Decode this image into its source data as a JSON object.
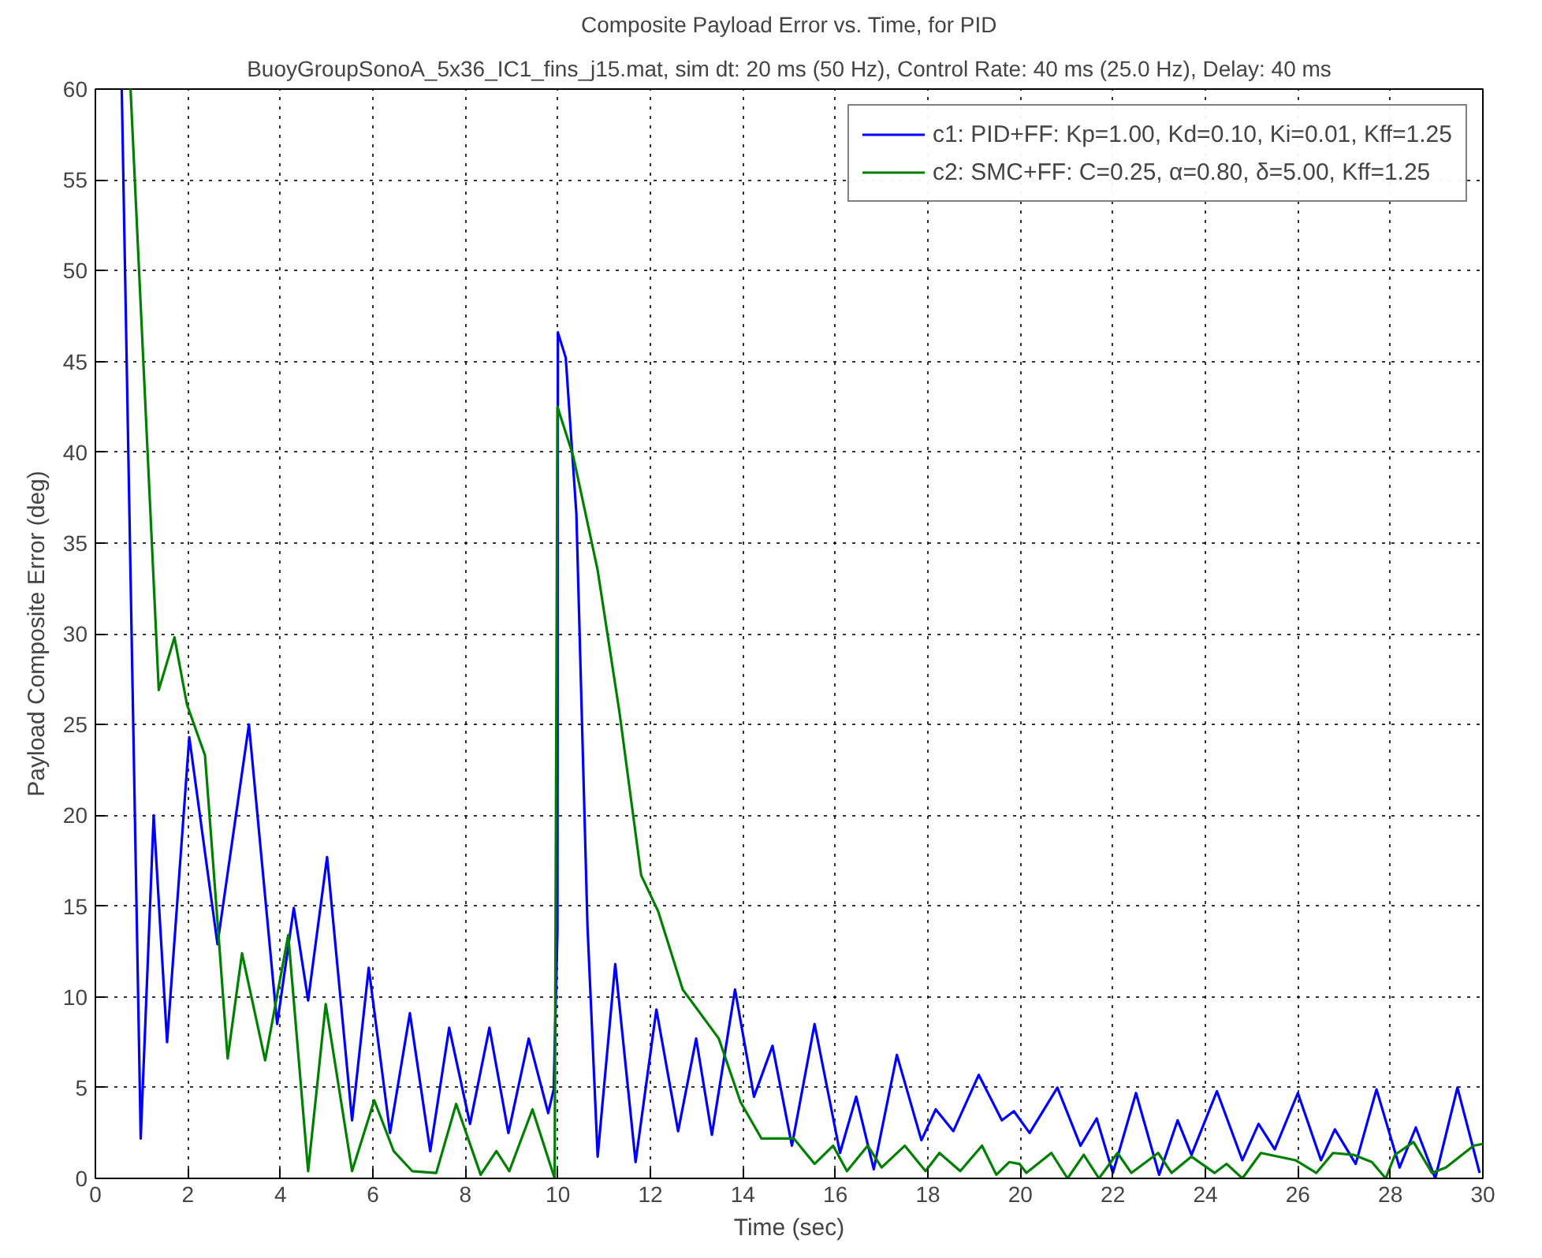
{
  "chart_data": {
    "type": "line",
    "title": "Composite Payload Error vs. Time, for PID",
    "subtitle": "BuoyGroupSonoA_5x36_IC1_fins_j15.mat, sim dt: 20 ms (50 Hz), Control Rate: 40 ms (25.0 Hz), Delay: 40 ms",
    "xlabel": "Time (sec)",
    "ylabel": "Payload Composite Error (deg)",
    "xlim": [
      0,
      30
    ],
    "ylim": [
      0,
      60
    ],
    "xticks": [
      0,
      2,
      4,
      6,
      8,
      10,
      12,
      14,
      16,
      18,
      20,
      22,
      24,
      26,
      28,
      30
    ],
    "yticks": [
      0,
      5,
      10,
      15,
      20,
      25,
      30,
      35,
      40,
      45,
      50,
      55,
      60
    ],
    "grid": true,
    "legend": "top right",
    "line_style": "solid",
    "series": [
      {
        "name": "c1: PID+FF: Kp=1.00, Kd=0.10, Ki=0.01, Kff=1.25",
        "color": "#0000ff",
        "x": [
          0.57,
          0.98,
          1.26,
          1.55,
          2.03,
          2.64,
          3.32,
          3.93,
          4.29,
          4.6,
          5.01,
          5.55,
          5.91,
          6.37,
          6.8,
          7.24,
          7.65,
          8.1,
          8.52,
          8.93,
          9.37,
          9.79,
          9.91,
          9.99,
          10.0,
          10.17,
          10.4,
          10.64,
          10.86,
          11.24,
          11.68,
          12.13,
          12.6,
          12.99,
          13.33,
          13.83,
          14.24,
          14.64,
          15.06,
          15.55,
          16.1,
          16.45,
          16.83,
          17.33,
          17.86,
          18.17,
          18.55,
          19.1,
          19.6,
          19.86,
          20.2,
          20.8,
          21.3,
          21.65,
          22.0,
          22.5,
          23.0,
          23.4,
          23.7,
          24.25,
          24.8,
          25.15,
          25.5,
          26.0,
          26.5,
          26.8,
          27.25,
          27.7,
          28.2,
          28.55,
          28.97,
          29.45,
          29.93
        ],
        "values": [
          60,
          2.2,
          20.0,
          7.5,
          24.3,
          12.9,
          25.0,
          8.5,
          14.9,
          9.8,
          17.7,
          3.2,
          11.6,
          2.5,
          9.1,
          1.5,
          8.3,
          3.0,
          8.3,
          2.5,
          7.7,
          3.6,
          4.9,
          13.6,
          46.6,
          45.2,
          36.6,
          13.9,
          1.2,
          11.8,
          0.9,
          9.3,
          2.6,
          7.7,
          2.4,
          10.4,
          4.5,
          7.3,
          1.8,
          8.5,
          1.4,
          4.5,
          0.5,
          6.8,
          2.1,
          3.8,
          2.6,
          5.7,
          3.2,
          3.7,
          2.5,
          5.0,
          1.8,
          3.3,
          0.3,
          4.7,
          0.2,
          3.2,
          1.3,
          4.8,
          1.0,
          3.0,
          1.6,
          4.7,
          1.0,
          2.7,
          0.8,
          4.9,
          0.6,
          2.8,
          0.0,
          5.0,
          0.3
        ]
      },
      {
        "name": "c2: SMC+FF: C=0.25, α=0.80, δ=5.00, Kff=1.25",
        "color": "#008000",
        "x": [
          0.76,
          1.37,
          1.71,
          1.98,
          2.37,
          2.68,
          2.86,
          3.17,
          3.67,
          4.17,
          4.6,
          4.98,
          5.55,
          6.03,
          6.45,
          6.85,
          7.37,
          7.8,
          8.33,
          8.67,
          8.95,
          9.45,
          9.93,
          9.99,
          10.33,
          10.86,
          11.33,
          11.8,
          12.17,
          12.7,
          13.48,
          13.95,
          14.4,
          14.72,
          15.1,
          15.55,
          15.95,
          16.25,
          16.7,
          17.0,
          17.5,
          17.95,
          18.25,
          18.7,
          19.17,
          19.48,
          19.76,
          19.98,
          20.13,
          20.67,
          21.02,
          21.37,
          21.7,
          22.1,
          22.4,
          22.98,
          23.27,
          23.7,
          24.2,
          24.46,
          24.8,
          25.2,
          25.95,
          26.4,
          26.76,
          27.2,
          27.6,
          27.9,
          28.1,
          28.5,
          28.9,
          29.2,
          29.8,
          30.0
        ],
        "values": [
          60,
          26.9,
          29.8,
          26.1,
          23.3,
          12.8,
          6.6,
          12.4,
          6.5,
          13.4,
          0.4,
          9.6,
          0.4,
          4.3,
          1.5,
          0.4,
          0.3,
          4.1,
          0.2,
          1.5,
          0.4,
          3.8,
          0.0,
          42.5,
          39.8,
          33.5,
          25.7,
          16.7,
          14.7,
          10.4,
          7.7,
          4.2,
          2.2,
          2.2,
          2.2,
          0.8,
          1.8,
          0.4,
          1.8,
          0.6,
          1.8,
          0.4,
          1.4,
          0.4,
          1.8,
          0.2,
          0.9,
          0.8,
          0.3,
          1.4,
          0.0,
          1.3,
          0.0,
          1.4,
          0.3,
          1.4,
          0.3,
          1.2,
          0.3,
          0.8,
          0.0,
          1.4,
          1.0,
          0.3,
          1.4,
          1.3,
          0.9,
          0.0,
          1.3,
          2.0,
          0.3,
          0.6,
          1.8,
          1.9
        ]
      }
    ]
  }
}
